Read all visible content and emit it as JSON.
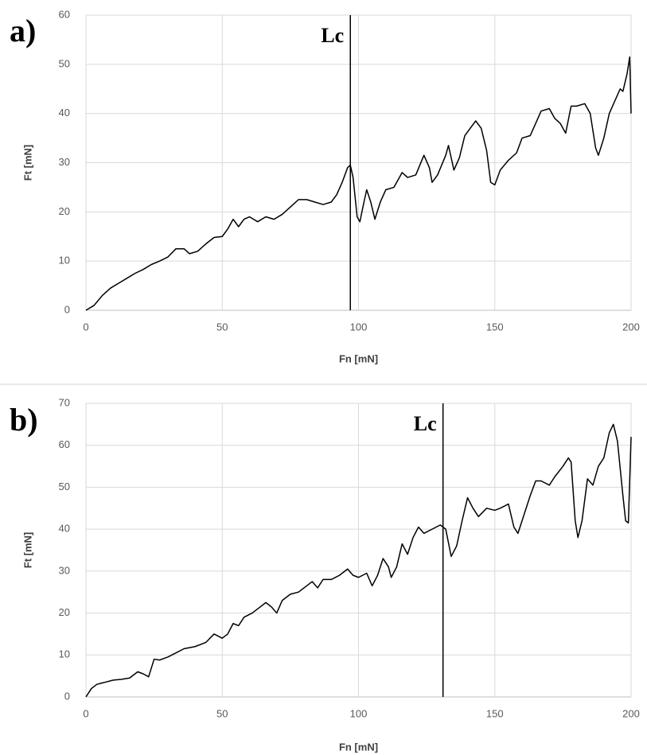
{
  "chart_data": [
    {
      "type": "line",
      "panel_label": "a)",
      "xlabel": "Fn [mN]",
      "ylabel": "Ft [mN]",
      "xlim": [
        0,
        200
      ],
      "xticks": [
        0,
        50,
        100,
        150,
        200
      ],
      "ylim": [
        0,
        60
      ],
      "yticks": [
        0,
        10,
        20,
        30,
        40,
        50,
        60
      ],
      "grid": true,
      "color": "#000000",
      "annotations": [
        {
          "text": "Lc",
          "x": 97
        }
      ],
      "x": [
        0,
        3,
        6,
        9,
        12,
        15,
        18,
        21,
        24,
        27,
        30,
        33,
        36,
        38,
        41,
        44,
        47,
        50,
        52,
        54,
        56,
        58,
        60,
        63,
        66,
        69,
        72,
        75,
        78,
        81,
        84,
        87,
        90,
        92,
        94,
        96,
        97,
        98,
        99.5,
        100.5,
        102,
        103,
        104.5,
        106,
        108,
        110,
        113,
        116,
        118,
        121,
        124,
        126,
        127,
        129,
        132,
        133,
        135,
        137,
        139,
        141,
        143,
        145,
        147,
        148.5,
        150,
        152,
        155,
        158,
        160,
        163,
        165,
        167,
        170,
        172,
        174,
        176,
        178,
        180,
        183,
        185,
        187,
        188,
        190,
        192,
        194,
        196,
        197,
        198.5,
        199.5,
        200
      ],
      "values": [
        0,
        1,
        3,
        4.5,
        5.5,
        6.5,
        7.5,
        8.3,
        9.3,
        10,
        10.8,
        12.5,
        12.5,
        11.5,
        12,
        13.5,
        14.8,
        15,
        16.5,
        18.5,
        17,
        18.5,
        19,
        18,
        19,
        18.5,
        19.5,
        21,
        22.5,
        22.5,
        22,
        21.5,
        22,
        23.5,
        26,
        29,
        29.5,
        27,
        19,
        18,
        22,
        24.5,
        22,
        18.5,
        22,
        24.5,
        25,
        28,
        27,
        27.5,
        31.5,
        29,
        26,
        27.5,
        31.5,
        33.5,
        28.5,
        31,
        35.5,
        37,
        38.5,
        37,
        32.5,
        26,
        25.5,
        28.5,
        30.5,
        32,
        35,
        35.5,
        38,
        40.5,
        41,
        39,
        38,
        36,
        41.5,
        41.5,
        42,
        40,
        33,
        31.5,
        35,
        40,
        42.5,
        45,
        44.5,
        48,
        51.5,
        40
      ]
    },
    {
      "type": "line",
      "panel_label": "b)",
      "xlabel": "Fn [mN]",
      "ylabel": "Ft [mN]",
      "xlim": [
        0,
        200
      ],
      "xticks": [
        0,
        50,
        100,
        150,
        200
      ],
      "ylim": [
        0,
        70
      ],
      "yticks": [
        0,
        10,
        20,
        30,
        40,
        50,
        60,
        70
      ],
      "grid": true,
      "color": "#000000",
      "annotations": [
        {
          "text": "Lc",
          "x": 131
        }
      ],
      "x": [
        0,
        2,
        4,
        7,
        10,
        13,
        16,
        19,
        21,
        23,
        25,
        27,
        30,
        33,
        36,
        40,
        44,
        47,
        50,
        52,
        54,
        56,
        58,
        61,
        64,
        66,
        68,
        70,
        72,
        75,
        78,
        81,
        83,
        85,
        87,
        90,
        93,
        96,
        98,
        100,
        103,
        105,
        107,
        109,
        111,
        112,
        114,
        116,
        118,
        120,
        122,
        124,
        127,
        130,
        132,
        134,
        136,
        138,
        140,
        142,
        144,
        147,
        150,
        152,
        155,
        157,
        158.5,
        160,
        163,
        165,
        167,
        170,
        172,
        175,
        177,
        178,
        179.5,
        180.5,
        182,
        184,
        186,
        188,
        190,
        192,
        193.5,
        195,
        197,
        198,
        199,
        200
      ],
      "values": [
        0,
        2,
        3,
        3.5,
        4,
        4.2,
        4.5,
        6,
        5.5,
        4.8,
        9,
        8.8,
        9.5,
        10.5,
        11.5,
        12,
        13,
        15,
        14,
        15,
        17.5,
        17,
        19,
        20,
        21.5,
        22.5,
        21.5,
        20,
        23,
        24.5,
        25,
        26.5,
        27.5,
        26,
        28,
        28,
        29,
        30.5,
        29,
        28.5,
        29.5,
        26.5,
        29,
        33,
        31,
        28.5,
        31,
        36.5,
        34,
        38,
        40.5,
        39,
        40,
        41,
        40,
        33.5,
        36,
        42,
        47.5,
        45,
        43,
        45,
        44.5,
        45,
        46,
        40.5,
        39,
        42,
        48,
        51.5,
        51.5,
        50.5,
        52.5,
        55,
        57,
        56,
        42,
        38,
        42,
        52,
        50.5,
        55,
        57,
        63,
        65,
        61,
        48,
        42,
        41.5,
        62
      ]
    }
  ]
}
